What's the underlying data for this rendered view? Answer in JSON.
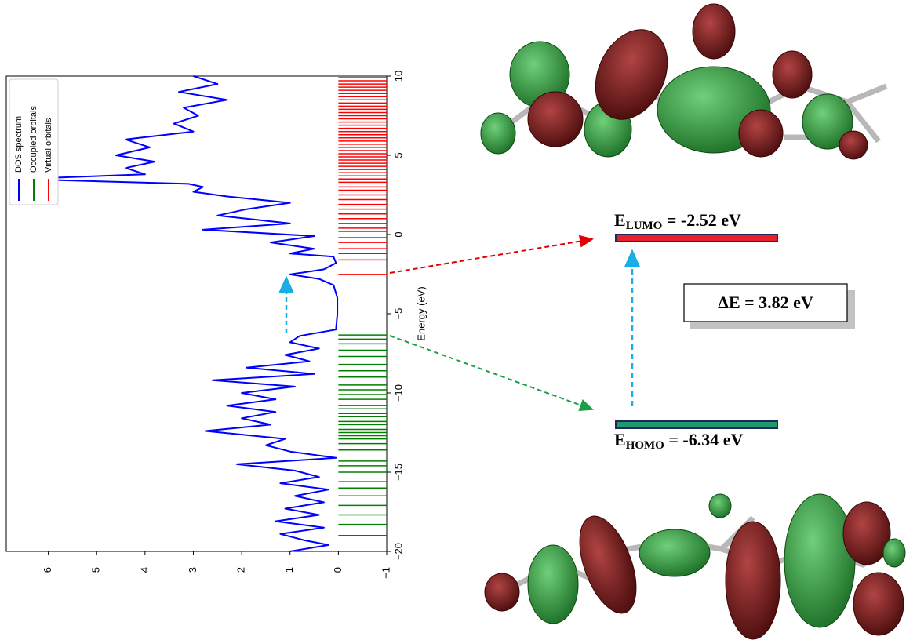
{
  "chart_data": {
    "type": "line",
    "orientation": "rotated",
    "x_label": "Energy (eV)",
    "xlim": [
      -20,
      10
    ],
    "xticks": [
      {
        "value": -20,
        "label": "−20"
      },
      {
        "value": -15,
        "label": "−15"
      },
      {
        "value": -10,
        "label": "−10"
      },
      {
        "value": -5,
        "label": "−5"
      },
      0,
      5,
      10
    ],
    "ylim": [
      -1,
      6.87
    ],
    "yticks": [
      {
        "value": -1,
        "label": "−1"
      },
      0,
      1,
      2,
      3,
      4,
      5,
      6
    ],
    "x": [
      -20,
      -19.6,
      -19.3,
      -18.9,
      -18.5,
      -18.1,
      -17.7,
      -17.3,
      -16.9,
      -16.5,
      -16.1,
      -15.7,
      -15.3,
      -14.9,
      -14.5,
      -14.1,
      -13.7,
      -13.3,
      -12.9,
      -12.4,
      -12.0,
      -11.6,
      -11.2,
      -10.8,
      -10.4,
      -10.0,
      -9.6,
      -9.2,
      -8.8,
      -8.4,
      -8.0,
      -7.6,
      -7.2,
      -6.8,
      -6.4,
      -6.0,
      -5.0,
      -4.0,
      -3.2,
      -2.8,
      -2.52,
      -2.2,
      -1.8,
      -1.4,
      -1.2,
      -0.9,
      -0.5,
      -0.1,
      0.3,
      0.7,
      1.2,
      1.6,
      2.0,
      2.4,
      2.7,
      3.0,
      3.2,
      3.5,
      3.8,
      4.2,
      4.6,
      5.0,
      5.5,
      6.0,
      6.5,
      7.0,
      7.5,
      8.0,
      8.5,
      9.0,
      9.5,
      10
    ],
    "series": [
      {
        "name": "DOS spectrum",
        "color": "#0000ff",
        "values": [
          1.0,
          0.2,
          0.7,
          1.2,
          0.3,
          1.3,
          0.4,
          1.1,
          0.3,
          0.9,
          0.2,
          1.2,
          0.4,
          0.9,
          2.1,
          0.05,
          1.0,
          1.5,
          1.1,
          2.75,
          1.4,
          2.0,
          1.3,
          2.3,
          1.3,
          2.0,
          0.9,
          2.6,
          0.5,
          1.9,
          0.6,
          1.1,
          0.4,
          1.0,
          0.8,
          0.05,
          0.02,
          0.02,
          0.1,
          0.4,
          1.0,
          0.3,
          0.05,
          0.1,
          1.0,
          0.5,
          1.4,
          0.5,
          2.8,
          1.0,
          2.5,
          1.9,
          1.0,
          2.3,
          3.0,
          2.8,
          3.1,
          6.6,
          4.0,
          4.4,
          3.8,
          4.6,
          3.9,
          4.4,
          3.0,
          3.4,
          2.9,
          3.2,
          2.3,
          3.3,
          2.5,
          3.0
        ]
      }
    ],
    "occupied_orbitals": {
      "name": "Occupied orbitals",
      "color": "#008000",
      "energies": [
        -19.0,
        -18.3,
        -17.7,
        -17.1,
        -16.5,
        -16.0,
        -15.6,
        -15.0,
        -14.6,
        -14.3,
        -13.6,
        -13.2,
        -12.9,
        -12.7,
        -12.5,
        -12.3,
        -12.0,
        -11.8,
        -11.5,
        -11.3,
        -11.0,
        -10.8,
        -10.4,
        -10.1,
        -9.8,
        -9.5,
        -9.0,
        -8.6,
        -8.2,
        -7.7,
        -7.3,
        -6.9,
        -6.6,
        -6.34
      ]
    },
    "virtual_orbitals": {
      "name": "Virtual orbitals",
      "color": "#ff0000",
      "energies": [
        -2.52,
        -1.6,
        -1.2,
        -0.9,
        -0.5,
        -0.2,
        0.2,
        0.4,
        0.7,
        1.0,
        1.3,
        1.6,
        1.9,
        2.2,
        2.5,
        2.8,
        3.0,
        3.3,
        3.5,
        3.7,
        3.9,
        4.1,
        4.3,
        4.5,
        4.7,
        4.9,
        5.1,
        5.3,
        5.5,
        5.7,
        5.9,
        6.1,
        6.3,
        6.5,
        6.7,
        6.9,
        7.1,
        7.3,
        7.5,
        7.7,
        7.9,
        8.1,
        8.3,
        8.5,
        8.7,
        8.9,
        9.1,
        9.3,
        9.5,
        9.7,
        9.9
      ]
    }
  },
  "energy_levels": {
    "lumo": {
      "symbol": "E",
      "subscript": "LUMO",
      "text": " = -2.52 eV"
    },
    "homo": {
      "symbol": "E",
      "subscript": "HOMO",
      "text": " = -6.34 eV"
    },
    "gap": "ΔE = 3.82 eV"
  }
}
